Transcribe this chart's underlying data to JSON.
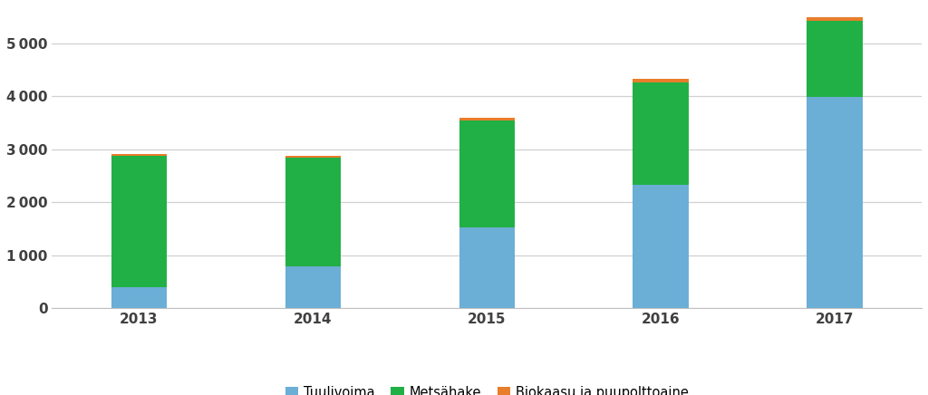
{
  "years": [
    "2013",
    "2014",
    "2015",
    "2016",
    "2017"
  ],
  "tuulivoima": [
    400,
    780,
    1530,
    2330,
    3980
  ],
  "metsahake": [
    2480,
    2060,
    2010,
    1940,
    1450
  ],
  "biokaasu": [
    30,
    30,
    60,
    60,
    70
  ],
  "color_tuulivoima": "#6BAED6",
  "color_metsahake": "#21B045",
  "color_biokaasu": "#E87D2B",
  "legend_labels": [
    "Tuulivoima",
    "Metsähake",
    "Biokaasu ja puupolttoaine"
  ],
  "ylim": [
    0,
    5700
  ],
  "yticks": [
    0,
    1000,
    2000,
    3000,
    4000,
    5000
  ],
  "bar_width": 0.32,
  "background_color": "#FFFFFF",
  "grid_color": "#D0D0D0",
  "tick_fontsize": 11,
  "tick_color": "#404040",
  "spine_color": "#C0C0C0"
}
